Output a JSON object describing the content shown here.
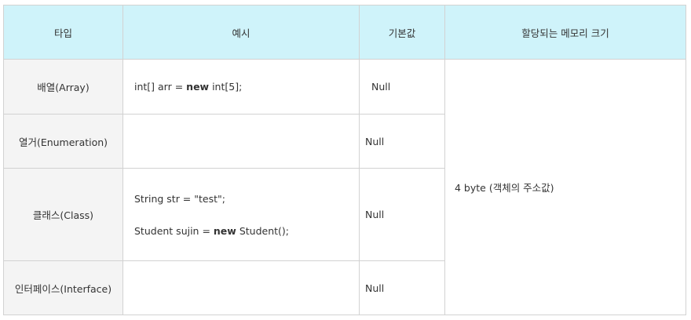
{
  "headers": [
    "타입",
    "예시",
    "기본값",
    "할당되는 메모리 크기"
  ],
  "rows": [
    {
      "type": "배열(Array)",
      "example": [
        {
          "pre": "int[] arr = ",
          "kw": "new",
          "post": " int[5];"
        }
      ],
      "default": "Null"
    },
    {
      "type": "열거(Enumeration)",
      "example": [],
      "default": "Null"
    },
    {
      "type": "클래스(Class)",
      "example": [
        {
          "pre": "String str = \"test\";",
          "kw": "",
          "post": ""
        },
        {
          "pre": "Student sujin = ",
          "kw": "new",
          "post": " Student();"
        }
      ],
      "default": "Null"
    },
    {
      "type": "인터페이스(Interface)",
      "example": [],
      "default": "Null"
    }
  ],
  "memory": "4 byte (객체의 주소값)"
}
